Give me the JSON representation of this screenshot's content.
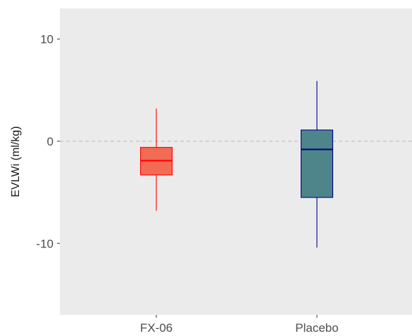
{
  "chart_data": {
    "type": "boxplot",
    "title": "",
    "xlabel": "",
    "ylabel": "EVLWi (ml/kg)",
    "ylim": [
      -17,
      13
    ],
    "yticks": [
      -10,
      0,
      10
    ],
    "ytick_labels": [
      "-10",
      "0",
      "10"
    ],
    "grid": false,
    "reference_line": {
      "y": 0,
      "style": "dashed",
      "color": "#bdbdbd"
    },
    "panel_background": "#ebebeb",
    "categories": [
      "FX-06",
      "Placebo"
    ],
    "boxes": [
      {
        "category": "FX-06",
        "min": -6.8,
        "q1": -3.3,
        "median": -1.9,
        "q3": -0.6,
        "max": 3.2,
        "fill": "#f26b54",
        "stroke": "#ff0000"
      },
      {
        "category": "Placebo",
        "min": -10.4,
        "q1": -5.5,
        "median": -0.8,
        "q3": 1.1,
        "max": 5.9,
        "fill": "#4e858a",
        "stroke": "#00008b"
      }
    ]
  }
}
